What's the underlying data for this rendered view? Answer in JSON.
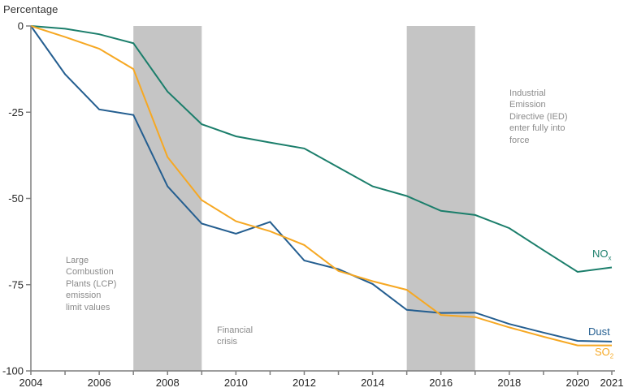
{
  "header": {
    "title": "Percentage"
  },
  "chart_data": {
    "type": "line",
    "title": "",
    "ylabel": "Percentage",
    "xlabel": "",
    "grid": false,
    "legend_position": "inline-right",
    "xlim": [
      2004,
      2021
    ],
    "ylim": [
      -100,
      0
    ],
    "yticks": [
      0,
      -25,
      -50,
      -75,
      -100
    ],
    "xtick_labels": [
      2004,
      2006,
      2008,
      2010,
      2012,
      2014,
      2016,
      2018,
      2020,
      2021
    ],
    "x": [
      2004,
      2005,
      2006,
      2007,
      2008,
      2009,
      2010,
      2011,
      2012,
      2013,
      2014,
      2015,
      2016,
      2017,
      2018,
      2019,
      2020,
      2021
    ],
    "series": [
      {
        "name": "NOx",
        "label": {
          "text": "NO",
          "sub": "x"
        },
        "color": "#1b7e6b",
        "values": [
          0,
          -0.8,
          -2.4,
          -5,
          -19,
          -28.5,
          -32,
          -33.8,
          -35.5,
          -41,
          -46.5,
          -49.3,
          -53.6,
          -54.8,
          -58.6,
          -65,
          -71.3,
          -70
        ]
      },
      {
        "name": "Dust",
        "label": {
          "text": "Dust",
          "sub": ""
        },
        "color": "#245e90",
        "values": [
          0,
          -14,
          -24.2,
          -25.8,
          -46.5,
          -57.3,
          -60.2,
          -56.8,
          -68,
          -70.5,
          -74.8,
          -82.3,
          -83.2,
          -83.1,
          -86.4,
          -88.9,
          -91.3,
          -91.5
        ]
      },
      {
        "name": "SO2",
        "label": {
          "text": "SO",
          "sub": "2"
        },
        "color": "#f6a823",
        "values": [
          0,
          -3.2,
          -6.6,
          -12.5,
          -38,
          -50.5,
          -56.6,
          -59.5,
          -63.5,
          -71,
          -74,
          -76.5,
          -83.8,
          -84.4,
          -87.4,
          -90.1,
          -92.6,
          -92.6
        ]
      }
    ],
    "bands": [
      {
        "name": "lcp",
        "from": 2007,
        "to": 2009
      },
      {
        "name": "ied",
        "from": 2015,
        "to": 2017
      }
    ],
    "colors": {
      "band": "#c5c5c5",
      "axis": "#7f7f7f",
      "tick_label": "#262626",
      "annotation": "#8b8b8b"
    }
  },
  "annotations": {
    "lcp": {
      "text": "Large\nCombustion\nPlants (LCP)\nemission\nlimit values"
    },
    "financial_crisis": {
      "text": "Financial\ncrisis"
    },
    "ied": {
      "text": "Industrial\nEmission\nDirective (IED)\nenter fully into\nforce"
    }
  }
}
